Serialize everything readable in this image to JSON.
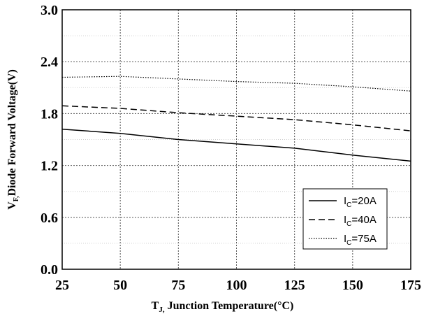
{
  "chart_data": {
    "type": "line",
    "title": "",
    "xlabel": {
      "main": "T",
      "sub": "J,",
      "rest": " Junction Temperature(°C)"
    },
    "ylabel": {
      "main": "V",
      "sub": "F,",
      "rest": "Diode Forward Voltage(V)"
    },
    "xlim": [
      25,
      175
    ],
    "ylim": [
      0.0,
      3.0
    ],
    "xticks": [
      "25",
      "50",
      "75",
      "100",
      "125",
      "150",
      "175"
    ],
    "yticks": [
      "0.0",
      "0.6",
      "1.2",
      "1.8",
      "2.4",
      "3.0"
    ],
    "grid": true,
    "legend_position": "bottom-right",
    "x": [
      25,
      50,
      75,
      100,
      125,
      150,
      175
    ],
    "series": [
      {
        "name": "I_C=20A",
        "legend": {
          "main": "I",
          "sub": "C",
          "rest": "=20A"
        },
        "style": "solid",
        "values": [
          1.62,
          1.57,
          1.5,
          1.45,
          1.4,
          1.32,
          1.25
        ]
      },
      {
        "name": "I_C=40A",
        "legend": {
          "main": "I",
          "sub": "C",
          "rest": "=40A"
        },
        "style": "dashed",
        "values": [
          1.89,
          1.86,
          1.81,
          1.77,
          1.73,
          1.67,
          1.6
        ]
      },
      {
        "name": "I_C=75A",
        "legend": {
          "main": "I",
          "sub": "C",
          "rest": "=75A"
        },
        "style": "dotted",
        "values": [
          2.22,
          2.23,
          2.2,
          2.17,
          2.15,
          2.11,
          2.06
        ]
      }
    ]
  }
}
